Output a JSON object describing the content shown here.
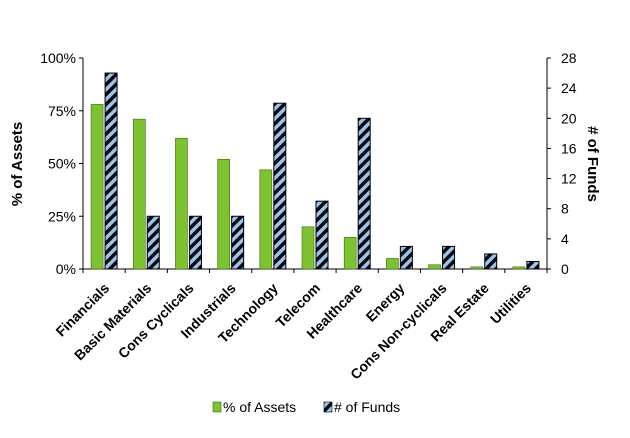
{
  "chart_data": {
    "type": "bar",
    "categories": [
      "Financials",
      "Basic Materials",
      "Cons Cyclicals",
      "Industrials",
      "Technology",
      "Telecom",
      "Healthcare",
      "Energy",
      "Cons Non-cyclicals",
      "Real Estate",
      "Utilities"
    ],
    "series": [
      {
        "name": "% of Assets",
        "axis": "left",
        "values": [
          78,
          71,
          62,
          52,
          47,
          20,
          15,
          5,
          2,
          1,
          1
        ],
        "color": "#7ec234"
      },
      {
        "name": "# of Funds",
        "axis": "right",
        "values": [
          26,
          7,
          7,
          7,
          22,
          9,
          20,
          3,
          3,
          2,
          1
        ],
        "color": "#9ec4e6",
        "pattern": "diagonal-hatch"
      }
    ],
    "ylabel": "% of Assets",
    "y2label": "# of Funds",
    "ylim": [
      0,
      100
    ],
    "y2lim": [
      0,
      28
    ],
    "yticks": [
      "0%",
      "25%",
      "50%",
      "75%",
      "100%"
    ],
    "y2ticks": [
      "0",
      "4",
      "8",
      "12",
      "16",
      "20",
      "24",
      "28"
    ],
    "legend": "bottom",
    "grid": false
  }
}
